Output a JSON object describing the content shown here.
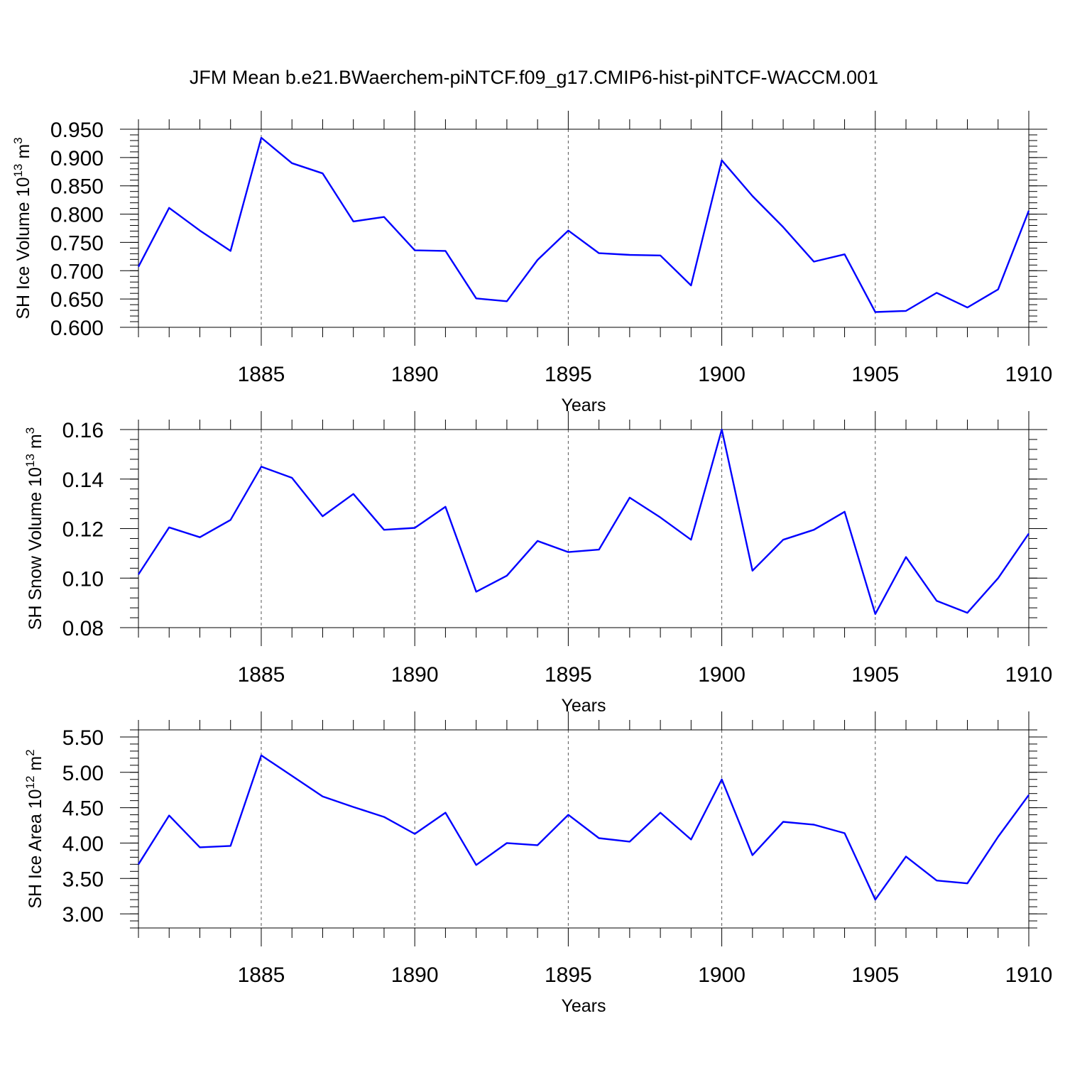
{
  "chart_data": {
    "type": "line",
    "title": "JFM Mean b.e21.BWaerchem-piNTCF.f09_g17.CMIP6-hist-piNTCF-WACCM.001",
    "x": [
      1881,
      1882,
      1883,
      1884,
      1885,
      1886,
      1887,
      1888,
      1889,
      1890,
      1891,
      1892,
      1893,
      1894,
      1895,
      1896,
      1897,
      1898,
      1899,
      1900,
      1901,
      1902,
      1903,
      1904,
      1905,
      1906,
      1907,
      1908,
      1909,
      1910
    ],
    "xlim": [
      1881,
      1910
    ],
    "xticks": [
      1885,
      1890,
      1895,
      1900,
      1905,
      1910
    ],
    "xtick_labels": [
      "1885",
      "1890",
      "1895",
      "1900",
      "1905",
      "1910"
    ],
    "panels": [
      {
        "ylabel_main": "SH Ice Volume 10",
        "ylabel_sup1": "13",
        "ylabel_mid": " m",
        "ylabel_sup2": "3",
        "xlabel": "Years",
        "ylim": [
          0.6,
          0.95
        ],
        "yticks": [
          0.6,
          0.65,
          0.7,
          0.75,
          0.8,
          0.85,
          0.9,
          0.95
        ],
        "ytick_labels": [
          "0.600",
          "0.650",
          "0.700",
          "0.750",
          "0.800",
          "0.850",
          "0.900",
          "0.950"
        ],
        "minor_step": 0.01,
        "values": [
          0.707,
          0.811,
          0.771,
          0.735,
          0.935,
          0.89,
          0.872,
          0.787,
          0.795,
          0.736,
          0.735,
          0.651,
          0.646,
          0.719,
          0.771,
          0.731,
          0.728,
          0.727,
          0.674,
          0.895,
          0.832,
          0.777,
          0.716,
          0.729,
          0.627,
          0.629,
          0.661,
          0.635,
          0.667,
          0.806
        ]
      },
      {
        "ylabel_main": "SH Snow Volume 10",
        "ylabel_sup1": "13",
        "ylabel_mid": " m",
        "ylabel_sup2": "3",
        "xlabel": "Years",
        "ylim": [
          0.08,
          0.16
        ],
        "yticks": [
          0.08,
          0.1,
          0.12,
          0.14,
          0.16
        ],
        "ytick_labels": [
          "0.08",
          "0.10",
          "0.12",
          "0.14",
          "0.16"
        ],
        "minor_step": 0.004,
        "values": [
          0.1015,
          0.1205,
          0.1165,
          0.1235,
          0.145,
          0.1405,
          0.125,
          0.134,
          0.1195,
          0.1203,
          0.1288,
          0.0945,
          0.101,
          0.115,
          0.1105,
          0.1115,
          0.1325,
          0.1245,
          0.1155,
          0.16,
          0.103,
          0.1155,
          0.1195,
          0.1268,
          0.0855,
          0.1085,
          0.0908,
          0.086,
          0.1,
          0.118
        ]
      },
      {
        "ylabel_main": "SH Ice Area 10",
        "ylabel_sup1": "12",
        "ylabel_mid": " m",
        "ylabel_sup2": "2",
        "xlabel": "Years",
        "ylim": [
          2.8,
          5.6
        ],
        "yticks": [
          3.0,
          3.5,
          4.0,
          4.5,
          5.0,
          5.5
        ],
        "ytick_labels": [
          "3.00",
          "3.50",
          "4.00",
          "4.50",
          "5.00",
          "5.50"
        ],
        "minor_step": 0.1,
        "values": [
          3.7,
          4.39,
          3.94,
          3.96,
          5.24,
          4.95,
          4.66,
          4.51,
          4.37,
          4.13,
          4.43,
          3.69,
          4.0,
          3.97,
          4.4,
          4.07,
          4.02,
          4.43,
          4.05,
          4.9,
          3.83,
          4.3,
          4.26,
          4.14,
          3.2,
          3.81,
          3.47,
          3.43,
          4.09,
          4.68
        ]
      }
    ]
  }
}
